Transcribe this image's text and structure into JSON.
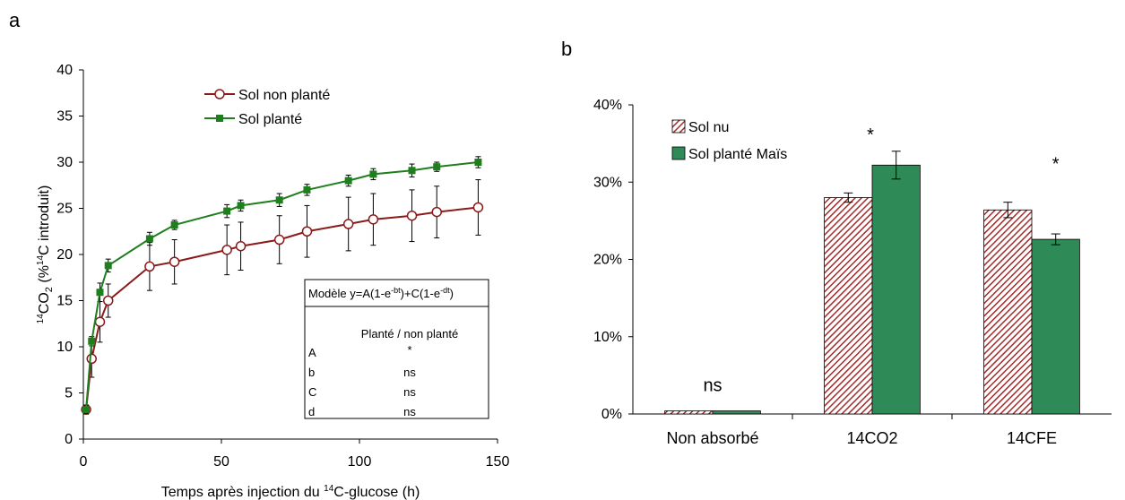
{
  "chart_data": [
    {
      "panel": "a",
      "type": "line",
      "xlabel_main": "Temps après injection du ",
      "xlabel_sup": "14",
      "xlabel_tail": "C-glucose (h)",
      "ylabel_p1_sup": "14",
      "ylabel_p2": "CO",
      "ylabel_p3_sub": "2",
      "ylabel_p4": " (%",
      "ylabel_p5_sup": "14",
      "ylabel_p6": "C introduit)",
      "xlim": [
        0,
        150
      ],
      "ylim": [
        0,
        40
      ],
      "xticks": [
        0,
        50,
        100,
        150
      ],
      "yticks": [
        0,
        5,
        10,
        15,
        20,
        25,
        30,
        35,
        40
      ],
      "legend_position": "top-center",
      "grid": false,
      "series": [
        {
          "name": "Sol non planté",
          "color": "#8b1a1a",
          "marker": "open-circle",
          "x": [
            1,
            3,
            6,
            9,
            24,
            33,
            52,
            57,
            71,
            81,
            96,
            105,
            119,
            128,
            143
          ],
          "y": [
            3.2,
            8.7,
            12.7,
            15.0,
            18.7,
            19.2,
            20.5,
            20.9,
            21.6,
            22.5,
            23.3,
            23.8,
            24.2,
            24.6,
            25.1
          ],
          "err": [
            0.5,
            2.0,
            2.2,
            1.8,
            2.6,
            2.4,
            2.7,
            2.6,
            2.6,
            2.8,
            2.9,
            2.8,
            2.8,
            2.8,
            3.0
          ]
        },
        {
          "name": "Sol planté",
          "color": "#1f7f1f",
          "marker": "filled-square",
          "x": [
            1,
            3,
            6,
            9,
            24,
            33,
            52,
            57,
            71,
            81,
            96,
            105,
            119,
            128,
            143
          ],
          "y": [
            3.2,
            10.6,
            15.9,
            18.8,
            21.7,
            23.2,
            24.7,
            25.3,
            25.9,
            27.0,
            28.0,
            28.7,
            29.1,
            29.5,
            30.0
          ],
          "err": [
            0.4,
            0.5,
            1.0,
            0.7,
            0.7,
            0.5,
            0.7,
            0.6,
            0.7,
            0.6,
            0.6,
            0.6,
            0.7,
            0.5,
            0.6
          ]
        }
      ],
      "model_box": {
        "title_pre": "Modèle y=A(1-e",
        "title_sup1": "-bt",
        "title_mid": ")+C(1-e",
        "title_sup2": "-dt",
        "title_post": ")",
        "column_header": "Planté / non planté",
        "rows": [
          {
            "param": "A",
            "value": "*"
          },
          {
            "param": "b",
            "value": "ns"
          },
          {
            "param": "C",
            "value": "ns"
          },
          {
            "param": "d",
            "value": "ns"
          }
        ]
      }
    },
    {
      "panel": "b",
      "type": "bar",
      "categories": [
        "Non absorbé",
        "14CO2",
        "14CFE"
      ],
      "ylim": [
        0,
        0.4
      ],
      "yticks": [
        "0%",
        "10%",
        "20%",
        "30%",
        "40%"
      ],
      "legend_position": "top-left",
      "grid": false,
      "series": [
        {
          "name": "Sol nu",
          "color": "#b22222",
          "pattern": "diagonal-hatch",
          "values": [
            0.004,
            0.28,
            0.264
          ],
          "err": [
            0,
            0.006,
            0.01
          ]
        },
        {
          "name": "Sol planté Maïs",
          "color": "#2e8b57",
          "values": [
            0.004,
            0.322,
            0.226
          ],
          "err": [
            0,
            0.018,
            0.007
          ]
        }
      ],
      "annotations": [
        "ns",
        "*",
        "*"
      ]
    }
  ],
  "panel_labels": {
    "a": "a",
    "b": "b"
  }
}
